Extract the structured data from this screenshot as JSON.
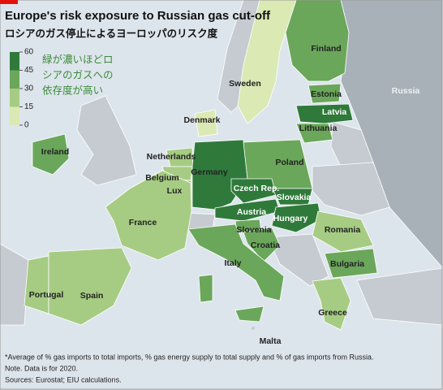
{
  "header": {
    "title": "Europe's risk exposure to Russian gas cut-off",
    "subtitle": "ロシアのガス停止によるヨーロッパのリスク度"
  },
  "legend": {
    "ticks": [
      0,
      15,
      30,
      45,
      60
    ],
    "colors": [
      "#dbe9b4",
      "#a6cc83",
      "#6aa75a",
      "#2f7a3a"
    ],
    "note": [
      "緑が濃いほどロ",
      "シアのガスへの",
      "依存度が高い"
    ]
  },
  "countries": [
    {
      "name": "Finland",
      "value": 30
    },
    {
      "name": "Sweden",
      "value": 5
    },
    {
      "name": "Estonia",
      "value": 30
    },
    {
      "name": "Latvia",
      "value": 55
    },
    {
      "name": "Lithuania",
      "value": 38
    },
    {
      "name": "Denmark",
      "value": 12
    },
    {
      "name": "Ireland",
      "value": 35
    },
    {
      "name": "Netherlands",
      "value": 22
    },
    {
      "name": "Germany",
      "value": 45
    },
    {
      "name": "Poland",
      "value": 30
    },
    {
      "name": "Belgium",
      "value": 25
    },
    {
      "name": "Lux",
      "value": 25
    },
    {
      "name": "Czech Rep.",
      "value": 48
    },
    {
      "name": "Slovakia",
      "value": 48
    },
    {
      "name": "Austria",
      "value": 47
    },
    {
      "name": "Hungary",
      "value": 57
    },
    {
      "name": "France",
      "value": 20
    },
    {
      "name": "Slovenia",
      "value": 32
    },
    {
      "name": "Croatia",
      "value": 30
    },
    {
      "name": "Romania",
      "value": 28
    },
    {
      "name": "Bulgaria",
      "value": 38
    },
    {
      "name": "Italy",
      "value": 42
    },
    {
      "name": "Portugal",
      "value": 15
    },
    {
      "name": "Spain",
      "value": 18
    },
    {
      "name": "Greece",
      "value": 28
    }
  ],
  "other_labels": [
    "Russia",
    "Malta"
  ],
  "footnote": [
    "*Average of % gas imports to total imports, % gas energy supply to total supply and % of gas imports from Russia.",
    "Note. Data is for 2020.",
    "Sources: Eurostat; EIU calculations."
  ]
}
